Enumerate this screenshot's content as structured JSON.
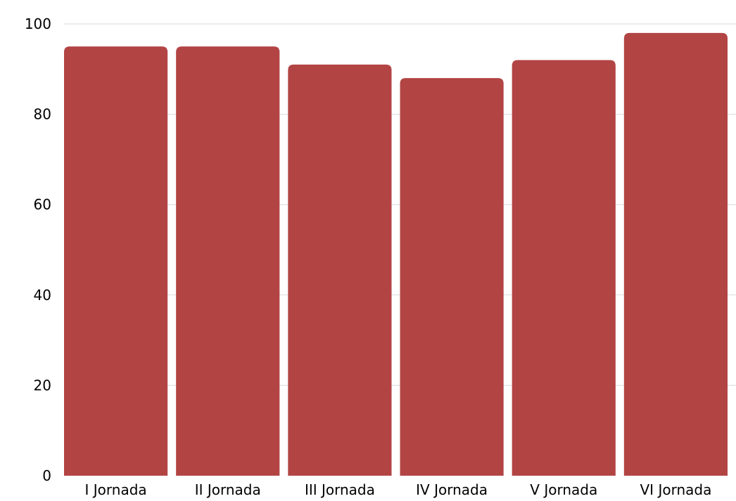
{
  "chart_data": {
    "type": "bar",
    "categories": [
      "I Jornada",
      "II Jornada",
      "III Jornada",
      "IV Jornada",
      "V Jornada",
      "VI Jornada"
    ],
    "values": [
      95,
      95,
      91,
      88,
      92,
      98
    ],
    "title": "",
    "xlabel": "",
    "ylabel": "",
    "ylim": [
      0,
      100
    ],
    "yticks": [
      0,
      20,
      40,
      60,
      80,
      100
    ],
    "grid": true,
    "bar_color": "#b34444"
  }
}
